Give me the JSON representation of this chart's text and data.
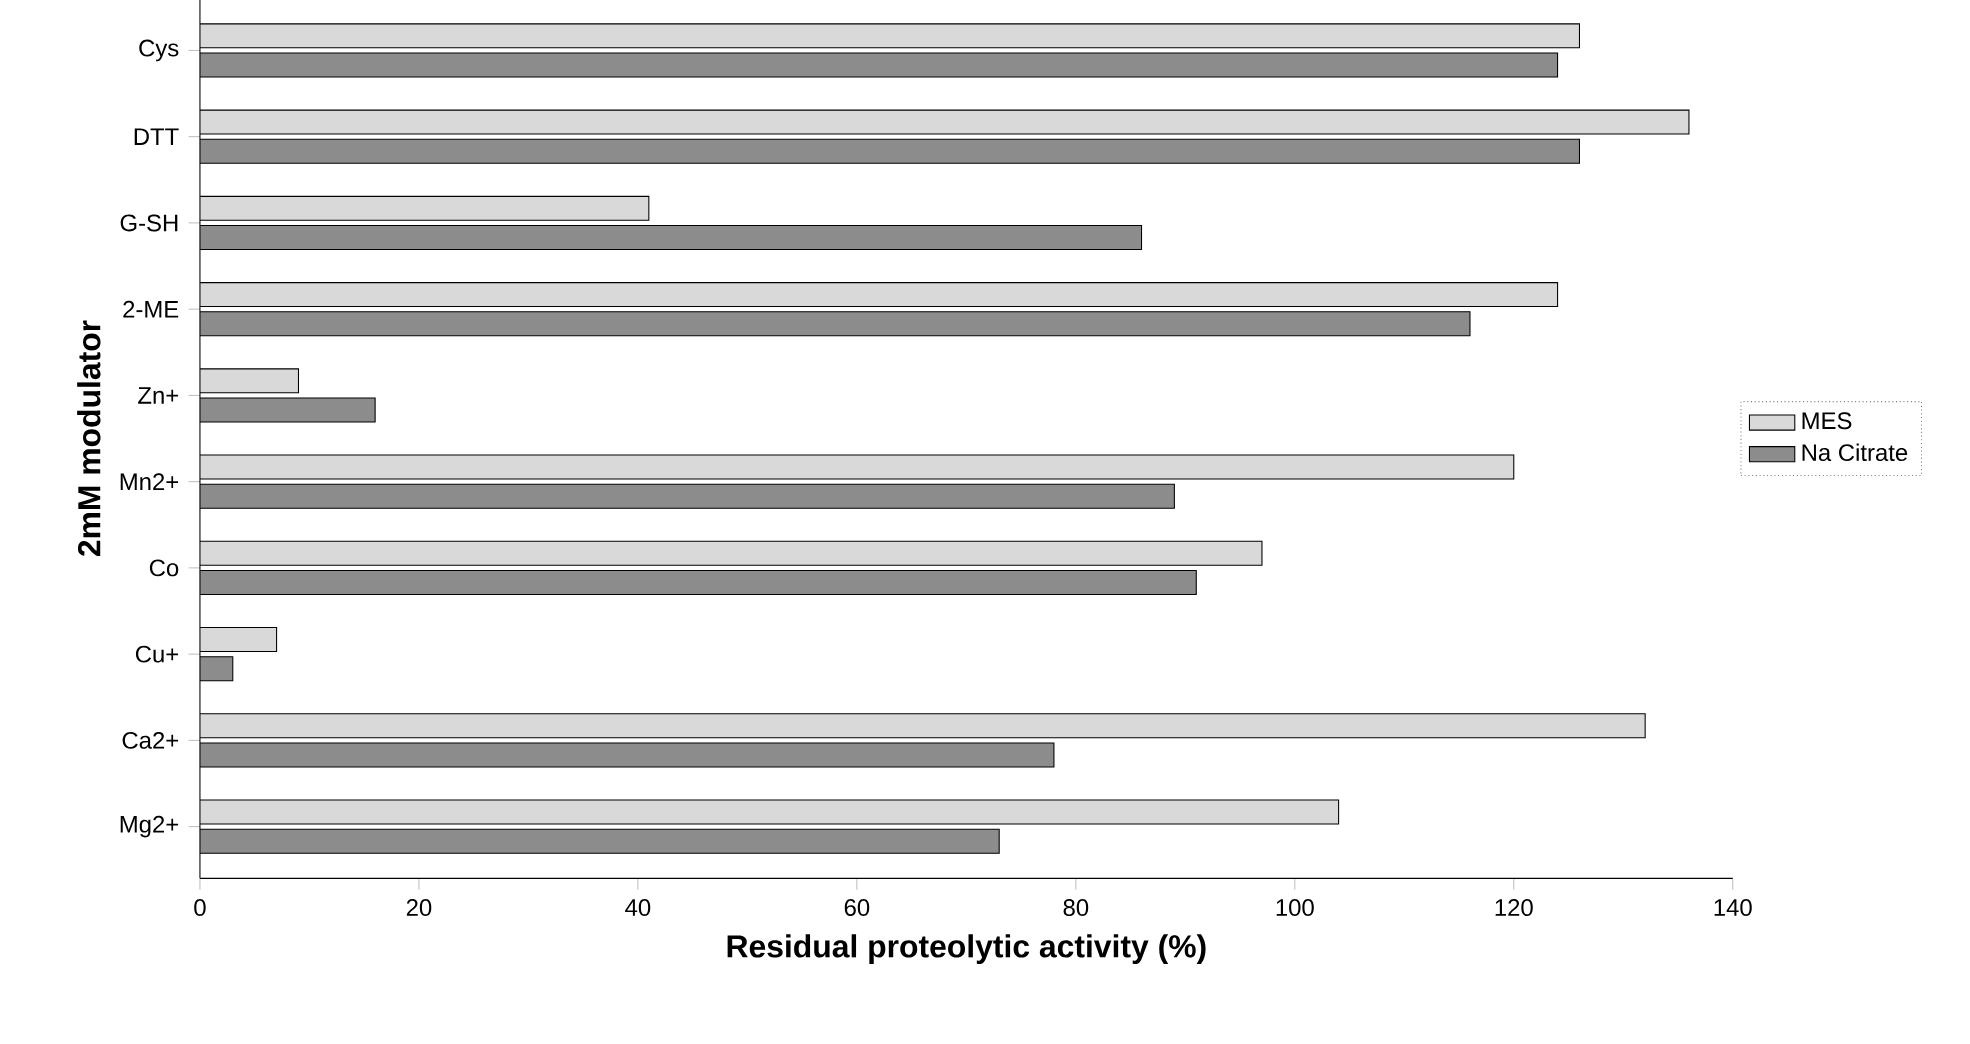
{
  "chart_data": {
    "type": "bar",
    "orientation": "horizontal",
    "xlabel": "Residual proteolytic activity (%)",
    "ylabel": "2mM modulator",
    "categories": [
      "Cys",
      "DTT",
      "G-SH",
      "2-ME",
      "Zn+",
      "Mn2+",
      "Co",
      "Cu+",
      "Ca2+",
      "Mg2+"
    ],
    "series": [
      {
        "name": "MES",
        "color": "#d9d9d9",
        "values": [
          126,
          136,
          41,
          124,
          9,
          120,
          97,
          7,
          132,
          104
        ]
      },
      {
        "name": "Na Citrate",
        "color": "#8c8c8c",
        "values": [
          124,
          126,
          86,
          116,
          16,
          89,
          91,
          3,
          78,
          73
        ]
      }
    ],
    "xlim": [
      0,
      140
    ],
    "xticks": [
      0,
      20,
      40,
      60,
      80,
      100,
      120,
      140
    ],
    "grid": false,
    "legend": "right"
  }
}
